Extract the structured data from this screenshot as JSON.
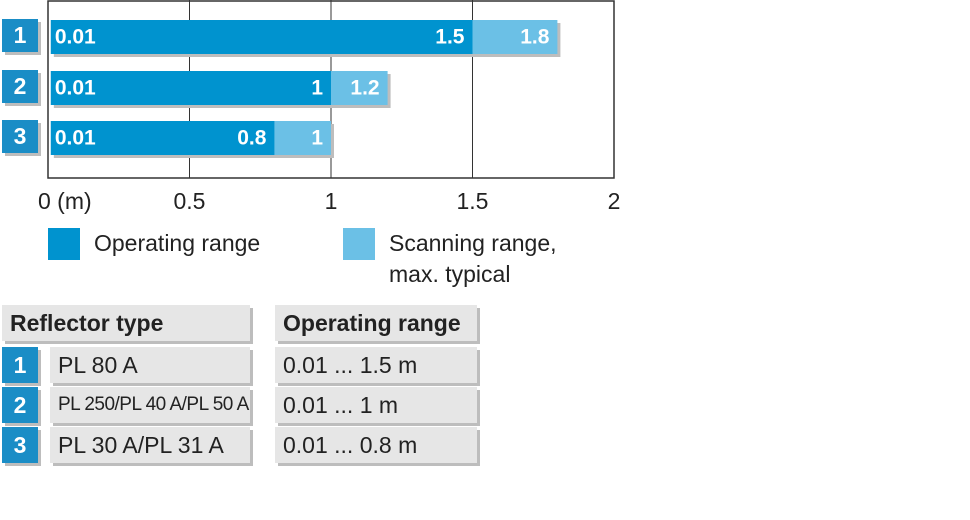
{
  "chart_data": {
    "type": "bar",
    "orientation": "horizontal",
    "categories": [
      "1",
      "2",
      "3"
    ],
    "series": [
      {
        "name": "Operating range",
        "color": "#0093cf",
        "start": [
          0.01,
          0.01,
          0.01
        ],
        "values": [
          1.5,
          1,
          0.8
        ]
      },
      {
        "name": "Scanning range, max. typical",
        "color": "#6bc0e6",
        "values": [
          1.8,
          1.2,
          1
        ]
      }
    ],
    "xlim": [
      0,
      2
    ],
    "xticks": [
      {
        "value": 0,
        "label": "0 (m)"
      },
      0.5,
      1,
      1.5,
      2
    ],
    "grid": true
  },
  "table": {
    "headers": [
      "Reflector type",
      "Operating range"
    ],
    "rows": [
      [
        "1",
        "PL 80 A",
        "0.01 ... 1.5 m"
      ],
      [
        "2",
        "PL 250/PL 40 A/PL 50 A",
        "0.01 ... 1 m"
      ],
      [
        "3",
        "PL 30 A/PL 31 A",
        "0.01 ... 0.8 m"
      ]
    ]
  }
}
